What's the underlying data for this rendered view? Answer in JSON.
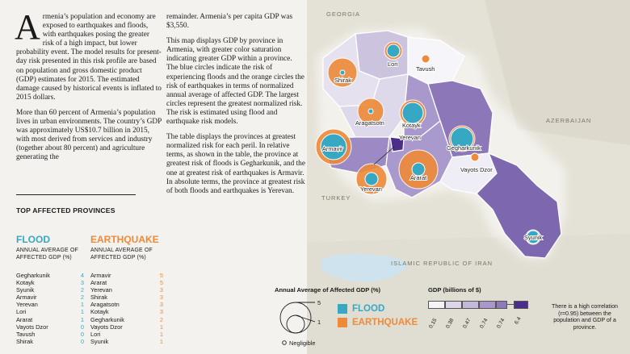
{
  "paragraphs": {
    "p1_dropcap": "A",
    "p1_rest": "rmenia’s population and economy are exposed to earthquakes and floods, with earthquakes posing the greater risk of a high impact, but lower probability event. The model results for present-day risk presented in this risk profile are based on population and gross domestic product (GDP) estimates for 2015. The estimated damage caused by historical events is inflated to 2015 dollars.",
    "p2": "More than 60 percent of Armenia’s population lives in urban environments. The country’s GDP was approximately US$10.7 billion in 2015, with most derived from services and industry (together about 80 percent) and agriculture generating the",
    "p3": "remainder. Armenia’s per capita GDP was $3,550.",
    "p4": "This map displays GDP by province in Armenia, with greater color saturation indicating greater GDP within a province. The blue circles indicate the risk of experiencing floods and the orange circles the risk of earthquakes in terms of normalized annual average of affected GDP. The largest circles represent the greatest normalized risk. The risk is estimated using flood and earthquake risk models.",
    "p5": "The table displays the provinces at greatest normalized risk for each peril. In relative terms, as shown in the table, the province at greatest risk of floods is Gegharkunik, and the one at greatest risk of earthquakes is Armavir. In absolute terms, the province at greatest risk of both floods and earthquakes is Yerevan."
  },
  "table": {
    "title": "TOP AFFECTED PROVINCES",
    "flood_heading": "FLOOD",
    "earthquake_heading": "EARTHQUAKE",
    "subheading": "ANNUAL AVERAGE OF AFFECTED GDP (%)",
    "flood_rows": [
      {
        "name": "Gegharkunik",
        "value": "4"
      },
      {
        "name": "Kotayk",
        "value": "3"
      },
      {
        "name": "Syunik",
        "value": "2"
      },
      {
        "name": "Armavir",
        "value": "2"
      },
      {
        "name": "Yerevan",
        "value": "1"
      },
      {
        "name": "Lori",
        "value": "1"
      },
      {
        "name": "Ararat",
        "value": "1"
      },
      {
        "name": "Vayots Dzor",
        "value": "0"
      },
      {
        "name": "Tavush",
        "value": "0"
      },
      {
        "name": "Shirak",
        "value": "0"
      }
    ],
    "earthquake_rows": [
      {
        "name": "Armavir",
        "value": "5"
      },
      {
        "name": "Ararat",
        "value": "5"
      },
      {
        "name": "Yerevan",
        "value": "3"
      },
      {
        "name": "Shirak",
        "value": "3"
      },
      {
        "name": "Aragatsotn",
        "value": "3"
      },
      {
        "name": "Kotayk",
        "value": "3"
      },
      {
        "name": "Gegharkunik",
        "value": "2"
      },
      {
        "name": "Vayots Dzor",
        "value": "1"
      },
      {
        "name": "Lori",
        "value": "1"
      },
      {
        "name": "Syunik",
        "value": "1"
      }
    ]
  },
  "map": {
    "countries": [
      "GEORGIA",
      "AZERBAIJAN",
      "TURKEY",
      "ISLAMIC REPUBLIC OF IRAN"
    ],
    "provinces": [
      "Lori",
      "Tavush",
      "Shirak",
      "Aragatsotn",
      "Kotayk",
      "Armavir",
      "Yerevan",
      "Gegharkunik",
      "Ararat",
      "Yerevan",
      "Vayots Dzor",
      "Syunik"
    ],
    "colors": {
      "flood": "#37a8c4",
      "earthquake": "#ee8a39",
      "gdp_dark": "#4a2e8a"
    }
  },
  "legend": {
    "circle_title": "Annual Average of Affected GDP (%)",
    "circle_max": "5",
    "circle_min": "1",
    "negligible": "Negligible",
    "flood": "FLOOD",
    "earthquake": "EARTHQUAKE",
    "gdp_title": "GDP (billions of $)",
    "gdp_ticks": [
      "0.15",
      "0.38",
      "0.47",
      "0.74",
      "0.74",
      "6.4"
    ],
    "gdp_colors": [
      "#f5f3f8",
      "#dcd6e8",
      "#c3b8da",
      "#a897c8",
      "#8e7ab8",
      "#4a2e8a"
    ],
    "note": "There is a high correlation (r=0.95) between the population and GDP of a province."
  }
}
